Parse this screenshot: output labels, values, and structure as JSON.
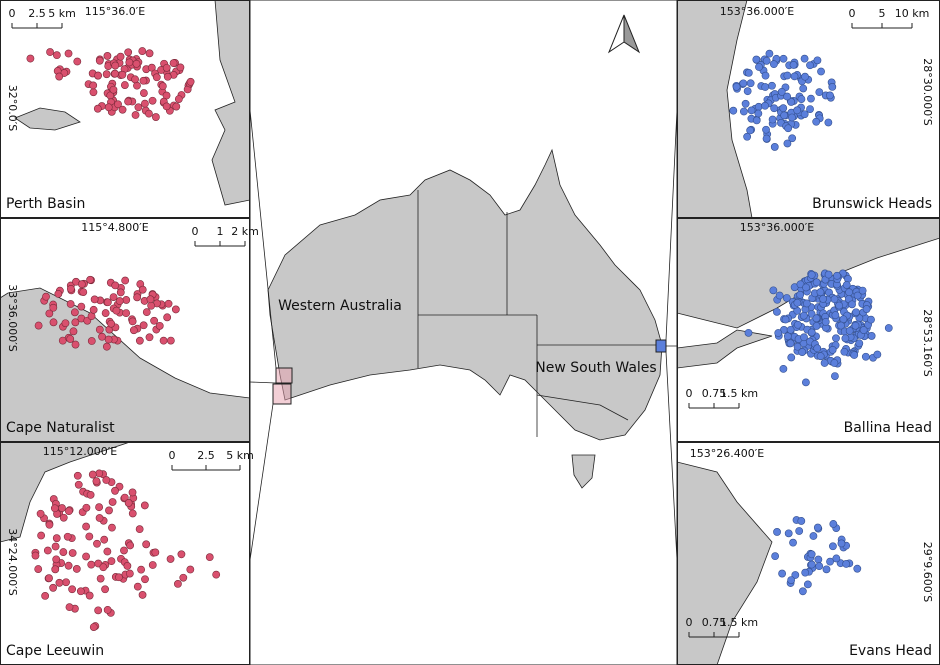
{
  "main_map": {
    "regions": [
      "Western Australia",
      "New South Wales"
    ]
  },
  "panels": [
    {
      "label": "Perth Basin",
      "longitude": "115°36.0′E",
      "latitude": "32°0.0′S",
      "scale": [
        "0",
        "2.5",
        "5 km"
      ]
    },
    {
      "label": "Cape Naturalist",
      "longitude": "115°4.800′E",
      "latitude": "33°36.000′S",
      "scale": [
        "0",
        "1",
        "2 km"
      ]
    },
    {
      "label": "Cape Leeuwin",
      "longitude": "115°12.000′E",
      "latitude": "34°24.000′S",
      "scale": [
        "0",
        "2.5",
        "5 km"
      ]
    },
    {
      "label": "Brunswick Heads",
      "longitude": "153°36.000′E",
      "latitude": "28°30.000′S",
      "scale": [
        "0",
        "5",
        "10 km"
      ]
    },
    {
      "label": "Ballina Head",
      "longitude": "153°36.000′E",
      "latitude": "28°53.160′S",
      "scale": [
        "0",
        "0.75",
        "1.5 km"
      ]
    },
    {
      "label": "Evans Head",
      "longitude": "153°26.400′E",
      "latitude": "29°9.600′S",
      "scale": [
        "0",
        "0.75",
        "1.5 km"
      ]
    }
  ]
}
